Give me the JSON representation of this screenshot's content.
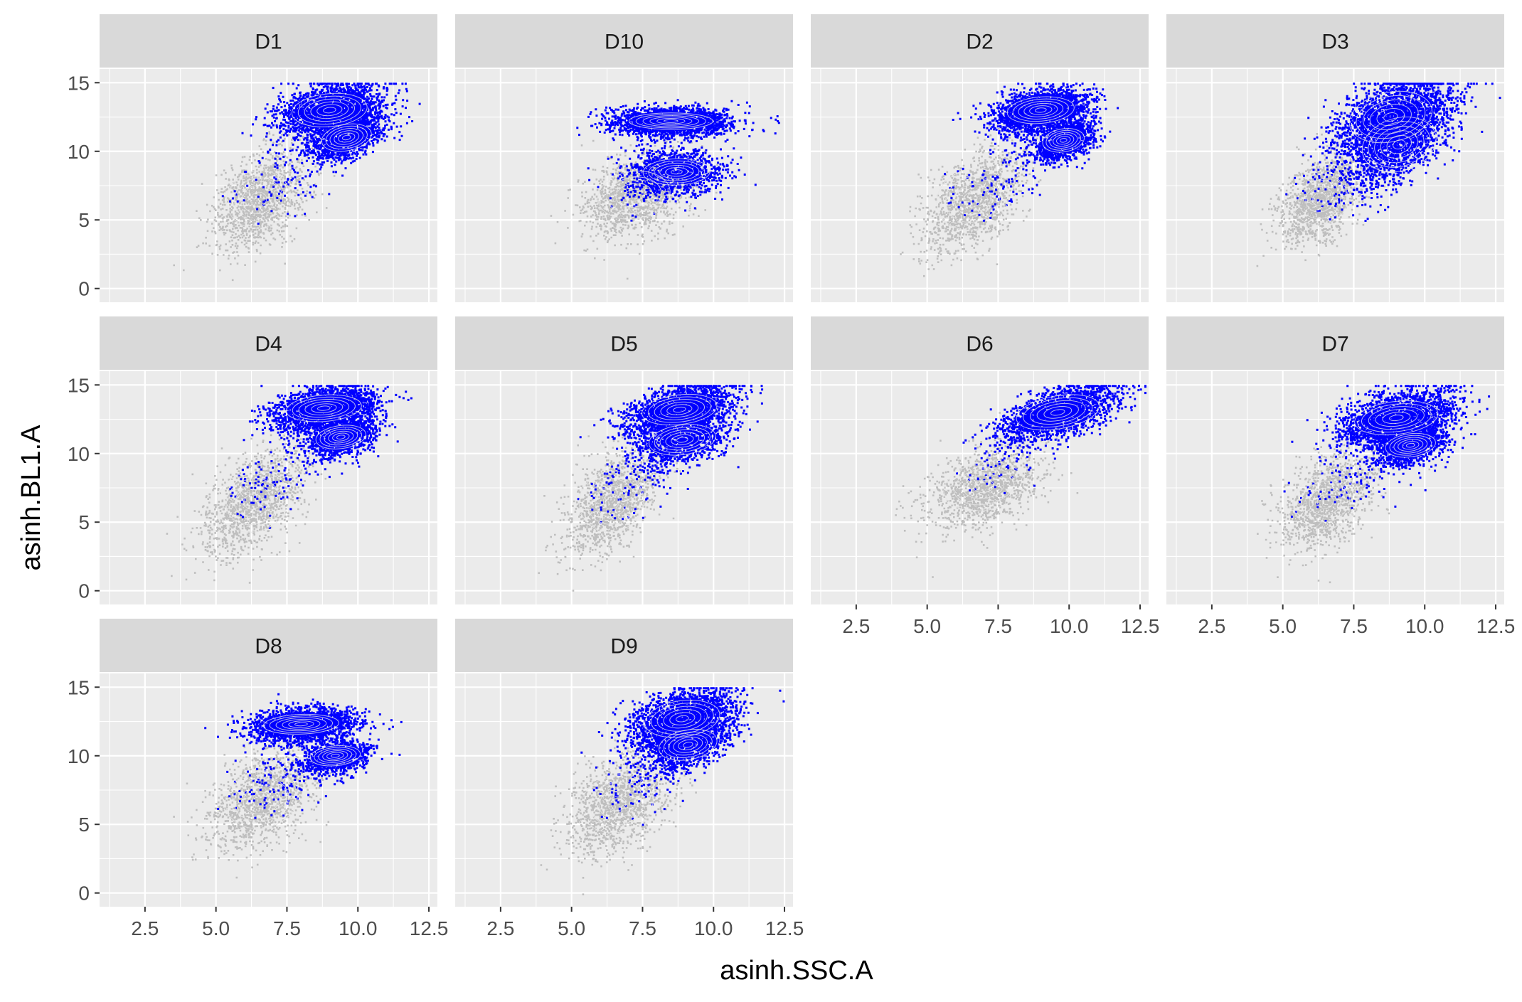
{
  "chart_data": {
    "type": "scatter",
    "facet_by": "donor",
    "xlabel": "asinh.SSC.A",
    "ylabel": "asinh.BL1.A",
    "xlim": [
      0.9,
      12.8
    ],
    "ylim": [
      -1.0,
      16.0
    ],
    "x_ticks": [
      "2.5",
      "5.0",
      "7.5",
      "10.0",
      "12.5"
    ],
    "y_ticks": [
      "0",
      "5",
      "10",
      "15"
    ],
    "x_tick_values": [
      2.5,
      5.0,
      7.5,
      10.0,
      12.5
    ],
    "y_tick_values": [
      0,
      5,
      10,
      15
    ],
    "grid": true,
    "density_contours": true,
    "colors": {
      "all_events": "#bebebe",
      "gated_events": "#0000ff",
      "contour": "#e6e6e6",
      "panel_background": "#ebebeb",
      "strip_background": "#d9d9d9",
      "grid_major": "#ffffff"
    },
    "panels": [
      {
        "label": "D1",
        "gray_cloud": {
          "center": [
            6.5,
            6.5
          ],
          "spread": [
            0.8,
            1.8
          ],
          "corr": 0.4
        },
        "blue_clusters": [
          {
            "center": [
              9.0,
              13.0
            ],
            "spread": [
              0.9,
              1.0
            ],
            "corr": 0.3
          },
          {
            "center": [
              9.6,
              11.0
            ],
            "spread": [
              0.6,
              0.8
            ],
            "corr": 0.5
          }
        ]
      },
      {
        "label": "D10",
        "gray_cloud": {
          "center": [
            7.2,
            6.8
          ],
          "spread": [
            0.9,
            1.5
          ],
          "corr": 0.3
        },
        "blue_clusters": [
          {
            "center": [
              8.5,
              12.2
            ],
            "spread": [
              1.0,
              0.5
            ],
            "corr": 0.0
          },
          {
            "center": [
              8.7,
              8.5
            ],
            "spread": [
              0.8,
              0.8
            ],
            "corr": 0.1
          }
        ]
      },
      {
        "label": "D2",
        "gray_cloud": {
          "center": [
            6.6,
            6.5
          ],
          "spread": [
            0.9,
            1.9
          ],
          "corr": 0.5
        },
        "blue_clusters": [
          {
            "center": [
              9.0,
              13.0
            ],
            "spread": [
              0.8,
              0.8
            ],
            "corr": 0.3
          },
          {
            "center": [
              9.8,
              10.8
            ],
            "spread": [
              0.5,
              0.7
            ],
            "corr": 0.4
          }
        ]
      },
      {
        "label": "D3",
        "gray_cloud": {
          "center": [
            6.3,
            6.5
          ],
          "spread": [
            0.7,
            1.6
          ],
          "corr": 0.4
        },
        "blue_clusters": [
          {
            "center": [
              8.8,
              12.5
            ],
            "spread": [
              1.0,
              1.5
            ],
            "corr": 0.5
          },
          {
            "center": [
              9.1,
              10.5
            ],
            "spread": [
              0.9,
              1.6
            ],
            "corr": 0.6
          }
        ]
      },
      {
        "label": "D4",
        "gray_cloud": {
          "center": [
            6.3,
            6.5
          ],
          "spread": [
            0.9,
            1.9
          ],
          "corr": 0.5
        },
        "blue_clusters": [
          {
            "center": [
              8.8,
              13.3
            ],
            "spread": [
              0.9,
              0.8
            ],
            "corr": 0.3
          },
          {
            "center": [
              9.4,
              11.2
            ],
            "spread": [
              0.6,
              0.7
            ],
            "corr": 0.4
          }
        ]
      },
      {
        "label": "D5",
        "gray_cloud": {
          "center": [
            6.4,
            6.5
          ],
          "spread": [
            0.8,
            1.9
          ],
          "corr": 0.5
        },
        "blue_clusters": [
          {
            "center": [
              8.8,
              13.2
            ],
            "spread": [
              0.9,
              0.9
            ],
            "corr": 0.4
          },
          {
            "center": [
              8.9,
              11.0
            ],
            "spread": [
              0.8,
              0.9
            ],
            "corr": 0.4
          }
        ]
      },
      {
        "label": "D6",
        "gray_cloud": {
          "center": [
            7.0,
            7.6
          ],
          "spread": [
            1.0,
            1.5
          ],
          "corr": 0.4
        },
        "blue_clusters": [
          {
            "center": [
              9.6,
              13.0
            ],
            "spread": [
              1.0,
              1.0
            ],
            "corr": 0.6
          }
        ]
      },
      {
        "label": "D7",
        "gray_cloud": {
          "center": [
            6.5,
            6.5
          ],
          "spread": [
            0.8,
            1.7
          ],
          "corr": 0.4
        },
        "blue_clusters": [
          {
            "center": [
              9.0,
              12.6
            ],
            "spread": [
              1.0,
              1.0
            ],
            "corr": 0.4
          },
          {
            "center": [
              9.5,
              10.6
            ],
            "spread": [
              0.6,
              0.7
            ],
            "corr": 0.4
          }
        ]
      },
      {
        "label": "D8",
        "gray_cloud": {
          "center": [
            6.6,
            6.8
          ],
          "spread": [
            0.9,
            1.8
          ],
          "corr": 0.4
        },
        "blue_clusters": [
          {
            "center": [
              8.0,
              12.3
            ],
            "spread": [
              0.9,
              0.6
            ],
            "corr": 0.2
          },
          {
            "center": [
              9.2,
              10.0
            ],
            "spread": [
              0.6,
              0.6
            ],
            "corr": 0.3
          }
        ]
      },
      {
        "label": "D9",
        "gray_cloud": {
          "center": [
            6.6,
            6.5
          ],
          "spread": [
            0.9,
            1.8
          ],
          "corr": 0.4
        },
        "blue_clusters": [
          {
            "center": [
              8.9,
              12.7
            ],
            "spread": [
              0.9,
              1.1
            ],
            "corr": 0.4
          },
          {
            "center": [
              9.1,
              10.8
            ],
            "spread": [
              0.7,
              0.9
            ],
            "corr": 0.5
          }
        ]
      }
    ]
  }
}
